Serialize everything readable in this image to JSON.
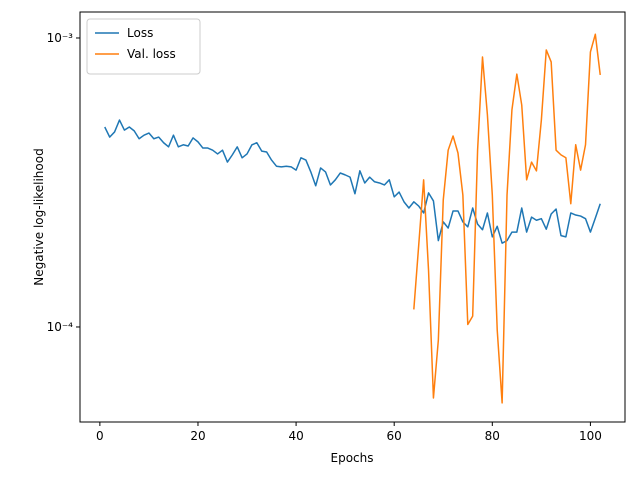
{
  "chart_data": {
    "type": "line",
    "xlabel": "Epochs",
    "ylabel": "Negative log-likelihood",
    "x": [
      1,
      2,
      3,
      4,
      5,
      6,
      7,
      8,
      9,
      10,
      11,
      12,
      13,
      14,
      15,
      16,
      17,
      18,
      19,
      20,
      21,
      22,
      23,
      24,
      25,
      26,
      27,
      28,
      29,
      30,
      31,
      32,
      33,
      34,
      35,
      36,
      37,
      38,
      39,
      40,
      41,
      42,
      43,
      44,
      45,
      46,
      47,
      48,
      49,
      50,
      51,
      52,
      53,
      54,
      55,
      56,
      57,
      58,
      59,
      60,
      61,
      62,
      63,
      64,
      65,
      66,
      67,
      68,
      69,
      70,
      71,
      72,
      73,
      74,
      75,
      76,
      77,
      78,
      79,
      80,
      81,
      82,
      83,
      84,
      85,
      86,
      87,
      88,
      89,
      90,
      91,
      92,
      93,
      94,
      95,
      96,
      97,
      98,
      99,
      100,
      101,
      102
    ],
    "series": [
      {
        "name": "Loss",
        "color": "#1f77b4",
        "values": [
          0.000492,
          0.000454,
          0.000473,
          0.00052,
          0.00048,
          0.000492,
          0.000477,
          0.000448,
          0.000461,
          0.000469,
          0.000448,
          0.000454,
          0.000434,
          0.00042,
          0.000461,
          0.00042,
          0.000427,
          0.000423,
          0.000451,
          0.000437,
          0.000416,
          0.000416,
          0.000409,
          0.000397,
          0.000409,
          0.000372,
          0.000394,
          0.00042,
          0.000385,
          0.000397,
          0.000427,
          0.000434,
          0.000406,
          0.000403,
          0.000378,
          0.00036,
          0.000358,
          0.00036,
          0.000358,
          0.000349,
          0.000385,
          0.000378,
          0.000344,
          0.000308,
          0.000355,
          0.000344,
          0.00031,
          0.000323,
          0.000341,
          0.000336,
          0.00033,
          0.000289,
          0.000347,
          0.000315,
          0.00033,
          0.000318,
          0.000315,
          0.00031,
          0.000323,
          0.000282,
          0.000293,
          0.000271,
          0.000258,
          0.000271,
          0.000262,
          0.000248,
          0.000291,
          0.000273,
          0.000199,
          0.000231,
          0.00022,
          0.000252,
          0.000252,
          0.000231,
          0.000222,
          0.000258,
          0.000227,
          0.000217,
          0.000248,
          0.000205,
          0.000223,
          0.000195,
          0.000199,
          0.000213,
          0.000213,
          0.000258,
          0.000213,
          0.00024,
          0.000234,
          0.000237,
          0.000218,
          0.000246,
          0.000256,
          0.000207,
          0.000205,
          0.000248,
          0.000244,
          0.000242,
          0.000237,
          0.000213,
          0.000238,
          0.000267
        ]
      },
      {
        "name": "Val. loss",
        "color": "#ff7f0e",
        "values": [
          null,
          null,
          null,
          null,
          null,
          null,
          null,
          null,
          null,
          null,
          null,
          null,
          null,
          null,
          null,
          null,
          null,
          null,
          null,
          null,
          null,
          null,
          null,
          null,
          null,
          null,
          null,
          null,
          null,
          null,
          null,
          null,
          null,
          null,
          null,
          null,
          null,
          null,
          null,
          null,
          null,
          null,
          null,
          null,
          null,
          null,
          null,
          null,
          null,
          null,
          null,
          null,
          null,
          null,
          null,
          null,
          null,
          null,
          null,
          null,
          null,
          null,
          null,
          0.000115,
          0.000192,
          0.000323,
          0.000157,
          5.68e-05,
          9.02e-05,
          0.000275,
          0.000409,
          0.000458,
          0.0004,
          0.000286,
          0.000102,
          0.000109,
          0.000409,
          0.000859,
          0.000542,
          0.000286,
          9.77e-05,
          5.46e-05,
          0.000286,
          0.000564,
          0.00075,
          0.000586,
          0.000323,
          0.000372,
          0.000347,
          0.00052,
          0.000909,
          0.000826,
          0.000409,
          0.000394,
          0.000385,
          0.000267,
          0.000427,
          0.000349,
          0.000427,
          0.000895,
          0.00103,
          0.000745
        ]
      }
    ],
    "xlim": [
      -4.05,
      107.05
    ],
    "xticks": [
      0,
      20,
      40,
      60,
      80,
      100
    ],
    "ylim": [
      4.69e-05,
      0.00123
    ],
    "log_y": true,
    "yticks": [
      {
        "value": 0.0001,
        "label": "10⁻⁴"
      },
      {
        "value": 0.001,
        "label": "10⁻³"
      }
    ],
    "legend": "upper left"
  }
}
